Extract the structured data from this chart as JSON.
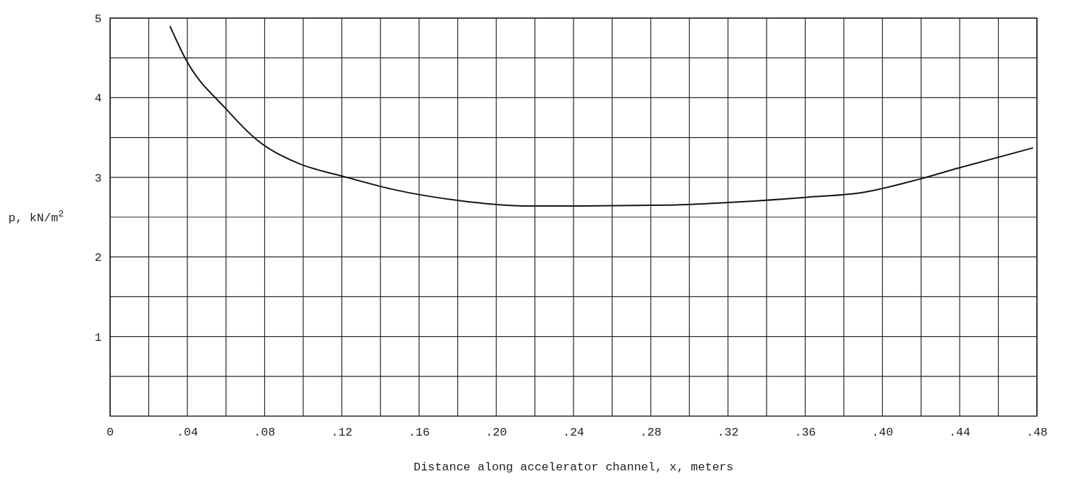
{
  "chart_data": {
    "type": "line",
    "xlabel": "Distance along accelerator channel, x, meters",
    "ylabel": "p, kN/m$^{2}$",
    "xlim": [
      0,
      0.48
    ],
    "ylim": [
      0,
      5
    ],
    "xticks": [
      {
        "value": 0,
        "label": "0"
      },
      {
        "value": 0.02,
        "label": null
      },
      {
        "value": 0.04,
        "label": ".04"
      },
      {
        "value": 0.06,
        "label": null
      },
      {
        "value": 0.08,
        "label": ".08"
      },
      {
        "value": 0.1,
        "label": null
      },
      {
        "value": 0.12,
        "label": ".12"
      },
      {
        "value": 0.14,
        "label": null
      },
      {
        "value": 0.16,
        "label": ".16"
      },
      {
        "value": 0.18,
        "label": null
      },
      {
        "value": 0.2,
        "label": ".20"
      },
      {
        "value": 0.22,
        "label": null
      },
      {
        "value": 0.24,
        "label": ".24"
      },
      {
        "value": 0.26,
        "label": null
      },
      {
        "value": 0.28,
        "label": ".28"
      },
      {
        "value": 0.3,
        "label": null
      },
      {
        "value": 0.32,
        "label": ".32"
      },
      {
        "value": 0.34,
        "label": null
      },
      {
        "value": 0.36,
        "label": ".36"
      },
      {
        "value": 0.38,
        "label": null
      },
      {
        "value": 0.4,
        "label": ".40"
      },
      {
        "value": 0.42,
        "label": null
      },
      {
        "value": 0.44,
        "label": ".44"
      },
      {
        "value": 0.46,
        "label": null
      },
      {
        "value": 0.48,
        "label": ".48"
      }
    ],
    "yticks": [
      {
        "value": 0.5,
        "label": null
      },
      1,
      {
        "value": 1.5,
        "label": null
      },
      2,
      {
        "value": 2.5,
        "label": null
      },
      3,
      {
        "value": 3.5,
        "label": null
      },
      4,
      {
        "value": 4.5,
        "label": null
      },
      5
    ],
    "grid": true,
    "marker": "none",
    "line_style": "solid",
    "series": [
      {
        "color": "#111111",
        "x": [
          0.031,
          0.039,
          0.06,
          0.076,
          0.097,
          0.121,
          0.148,
          0.18,
          0.217,
          0.245,
          0.289,
          0.325,
          0.361,
          0.39,
          0.415,
          0.44,
          0.478
        ],
        "values": [
          4.9,
          4.49,
          3.86,
          3.47,
          3.18,
          3.01,
          2.84,
          2.71,
          2.64,
          2.64,
          2.65,
          2.69,
          2.75,
          2.81,
          2.95,
          3.12,
          3.37
        ]
      }
    ]
  }
}
